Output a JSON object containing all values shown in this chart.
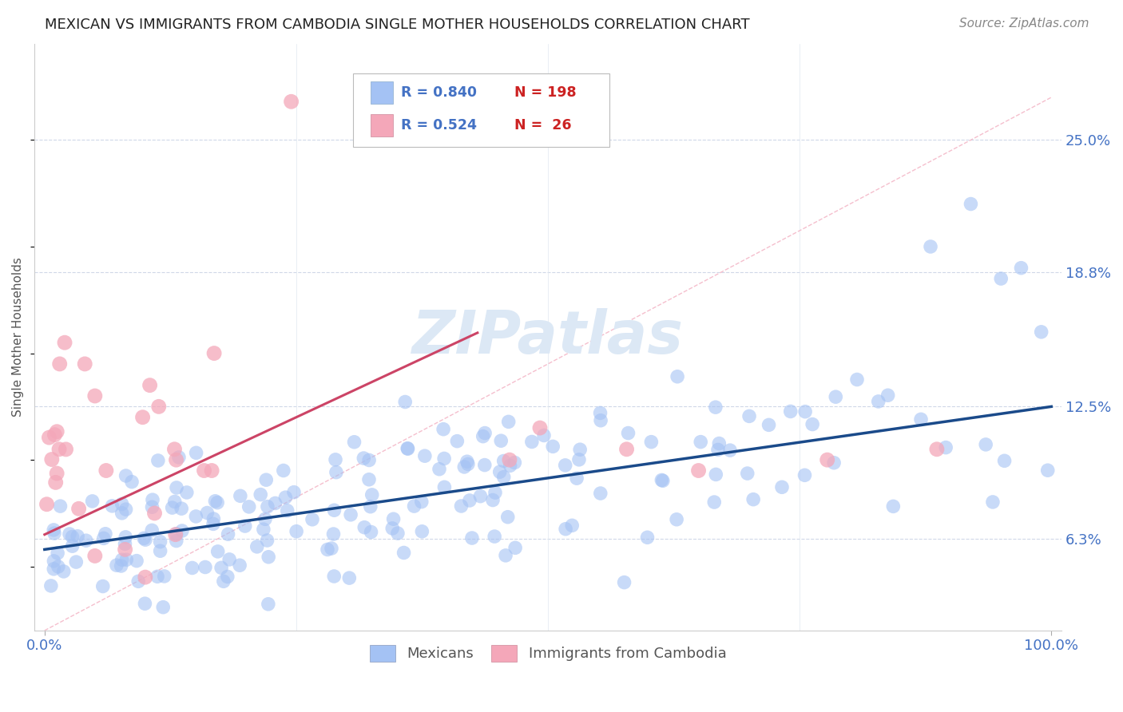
{
  "title": "MEXICAN VS IMMIGRANTS FROM CAMBODIA SINGLE MOTHER HOUSEHOLDS CORRELATION CHART",
  "source": "Source: ZipAtlas.com",
  "ylabel": "Single Mother Households",
  "legend_labels": [
    "Mexicans",
    "Immigrants from Cambodia"
  ],
  "blue_color": "#a4c2f4",
  "blue_line_color": "#1a4a8a",
  "pink_color": "#f4a7b9",
  "pink_line_color": "#cc4466",
  "dashed_line_color": "#f4b8c8",
  "watermark_text": "ZIPatlas",
  "watermark_color": "#dce8f5",
  "xlim": [
    0.0,
    1.0
  ],
  "ylim": [
    0.02,
    0.28
  ],
  "ytick_labels": [
    "6.3%",
    "12.5%",
    "18.8%",
    "25.0%"
  ],
  "ytick_values": [
    0.063,
    0.125,
    0.188,
    0.25
  ],
  "xtick_labels": [
    "0.0%",
    "100.0%"
  ],
  "blue_intercept": 0.058,
  "blue_slope": 0.067,
  "pink_intercept": 0.065,
  "pink_slope": 0.22,
  "background_color": "#ffffff",
  "title_fontsize": 13,
  "tick_label_color": "#4472c4",
  "source_color": "#888888",
  "ylabel_color": "#555555",
  "legend_r_color": "#4472c4",
  "legend_n_color": "#cc2222"
}
